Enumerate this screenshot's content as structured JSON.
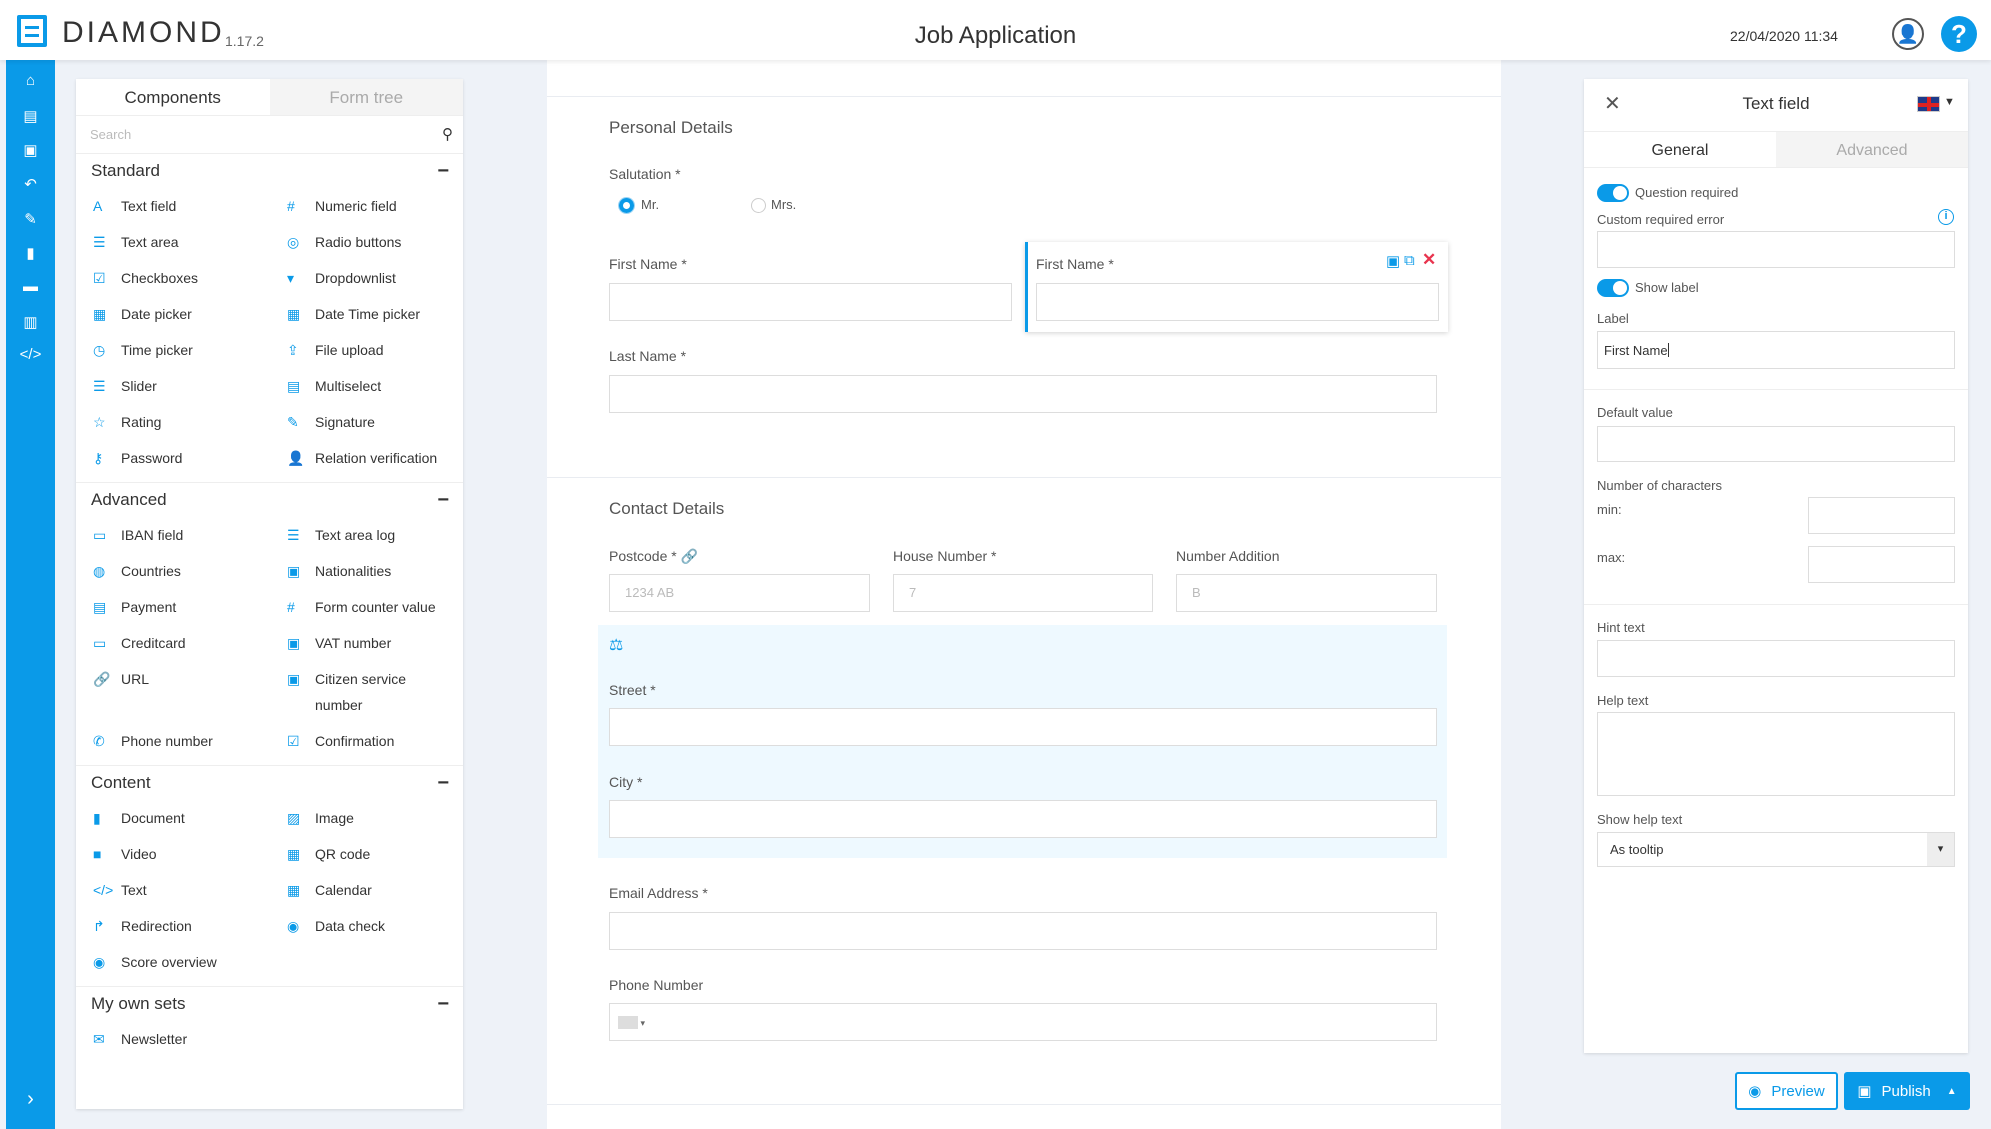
{
  "header": {
    "brand": "DIAMOND",
    "version": "1.17.2",
    "title": "Job Application",
    "datetime": "22/04/2020 11:34",
    "help": "?"
  },
  "colors": {
    "accent": "#0a9ae8",
    "delete": "#e8344e",
    "highlight_bg": "#eef9ff"
  },
  "sidebar": {
    "icons": [
      "home-icon",
      "list-icon",
      "id-card-icon",
      "reply-all-icon",
      "brush-icon",
      "file-icon",
      "folder-icon",
      "building-icon",
      "code-icon"
    ],
    "expand": "›"
  },
  "left_panel": {
    "tabs": [
      "Components",
      "Form tree"
    ],
    "search_placeholder": "Search",
    "sections": [
      {
        "title": "Standard",
        "items": [
          {
            "icon": "A",
            "label": "Text field"
          },
          {
            "icon": "#",
            "label": "Numeric field"
          },
          {
            "icon": "☰",
            "label": "Text area"
          },
          {
            "icon": "◎",
            "label": "Radio buttons"
          },
          {
            "icon": "☑",
            "label": "Checkboxes"
          },
          {
            "icon": "▾",
            "label": "Dropdownlist"
          },
          {
            "icon": "▦",
            "label": "Date picker"
          },
          {
            "icon": "▦",
            "label": "Date Time picker"
          },
          {
            "icon": "◷",
            "label": "Time picker"
          },
          {
            "icon": "⇪",
            "label": "File upload"
          },
          {
            "icon": "☰",
            "label": "Slider"
          },
          {
            "icon": "▤",
            "label": "Multiselect"
          },
          {
            "icon": "☆",
            "label": "Rating"
          },
          {
            "icon": "✎",
            "label": "Signature"
          },
          {
            "icon": "⚷",
            "label": "Password"
          },
          {
            "icon": "👤",
            "label": "Relation verification"
          }
        ]
      },
      {
        "title": "Advanced",
        "items": [
          {
            "icon": "▭",
            "label": "IBAN field"
          },
          {
            "icon": "☰",
            "label": "Text area log"
          },
          {
            "icon": "◍",
            "label": "Countries"
          },
          {
            "icon": "▣",
            "label": "Nationalities"
          },
          {
            "icon": "▤",
            "label": "Payment"
          },
          {
            "icon": "#",
            "label": "Form counter value"
          },
          {
            "icon": "▭",
            "label": "Creditcard"
          },
          {
            "icon": "▣",
            "label": "VAT number"
          },
          {
            "icon": "🔗",
            "label": "URL"
          },
          {
            "icon": "▣",
            "label": "Citizen service number"
          },
          {
            "icon": "✆",
            "label": "Phone number"
          },
          {
            "icon": "☑",
            "label": "Confirmation"
          }
        ]
      },
      {
        "title": "Content",
        "items": [
          {
            "icon": "▮",
            "label": "Document"
          },
          {
            "icon": "▨",
            "label": "Image"
          },
          {
            "icon": "■",
            "label": "Video"
          },
          {
            "icon": "▦",
            "label": "QR code"
          },
          {
            "icon": "</>",
            "label": "Text"
          },
          {
            "icon": "▦",
            "label": "Calendar"
          },
          {
            "icon": "↱",
            "label": "Redirection"
          },
          {
            "icon": "◉",
            "label": "Data check"
          },
          {
            "icon": "◉",
            "label": "Score overview"
          }
        ]
      },
      {
        "title": "My own sets",
        "items": [
          {
            "icon": "✉",
            "label": "Newsletter"
          }
        ]
      }
    ]
  },
  "form": {
    "personal_title": "Personal Details",
    "salutation_label": "Salutation *",
    "salutation_options": [
      "Mr.",
      "Mrs."
    ],
    "salutation_selected": "Mr.",
    "first_name_label": "First Name *",
    "first_name_copy_label": "First Name *",
    "last_name_label": "Last Name *",
    "contact_title": "Contact Details",
    "postcode_label": "Postcode *",
    "postcode_placeholder": "1234 AB",
    "house_label": "House Number *",
    "house_placeholder": "7",
    "addition_label": "Number Addition",
    "addition_placeholder": "B",
    "street_label": "Street *",
    "city_label": "City *",
    "email_label": "Email Address *",
    "phone_label": "Phone Number"
  },
  "right_panel": {
    "title": "Text field",
    "tabs": [
      "General",
      "Advanced"
    ],
    "question_required": "Question required",
    "question_required_on": true,
    "custom_error_label": "Custom required error",
    "show_label": "Show label",
    "show_label_on": true,
    "label_label": "Label",
    "label_value": "First Name",
    "default_label": "Default value",
    "chars_label": "Number of characters",
    "min_label": "min:",
    "max_label": "max:",
    "hint_label": "Hint text",
    "help_label": "Help text",
    "show_help_label": "Show help text",
    "show_help_value": "As tooltip",
    "preview": "Preview",
    "publish": "Publish"
  }
}
